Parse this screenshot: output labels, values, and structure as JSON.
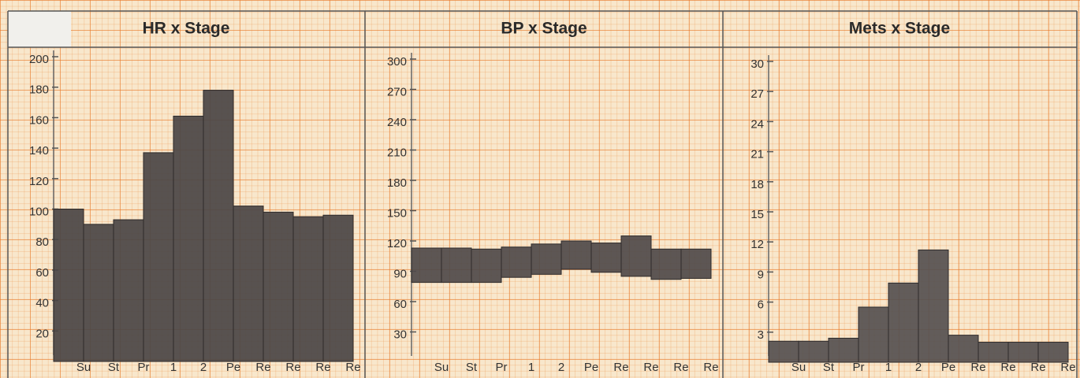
{
  "chart_data": [
    {
      "type": "bar",
      "title": "HR x Stage",
      "categories": [
        "Su",
        "St",
        "Pr",
        "1",
        "2",
        "Pe",
        "Re",
        "Re",
        "Re",
        "Re"
      ],
      "values": [
        100,
        90,
        93,
        137,
        161,
        178,
        102,
        98,
        95,
        96
      ],
      "color": "#4a4545",
      "ylim": [
        0,
        200
      ],
      "yticks": [
        20,
        40,
        60,
        80,
        100,
        120,
        140,
        160,
        180,
        200
      ]
    },
    {
      "type": "range-bar",
      "title": "BP x Stage",
      "categories": [
        "Su",
        "St",
        "Pr",
        "1",
        "2",
        "Pe",
        "Re",
        "Re",
        "Re",
        "Re"
      ],
      "high": [
        113,
        113,
        112,
        114,
        117,
        120,
        118,
        125,
        112,
        112
      ],
      "low": [
        79,
        79,
        79,
        84,
        87,
        92,
        89,
        85,
        82,
        83
      ],
      "color": "#4f4a4a",
      "ylim": [
        0,
        300
      ],
      "yticks": [
        30,
        60,
        90,
        120,
        150,
        180,
        210,
        240,
        270,
        300
      ]
    },
    {
      "type": "bar",
      "title": "Mets x Stage",
      "categories": [
        "Su",
        "St",
        "Pr",
        "1",
        "2",
        "Pe",
        "Re",
        "Re",
        "Re",
        "Re"
      ],
      "values": [
        2.1,
        2.1,
        2.4,
        5.5,
        7.9,
        11.2,
        2.7,
        2.0,
        2.0,
        2.0
      ],
      "color": "#555050",
      "ylim": [
        0,
        30
      ],
      "yticks": [
        3,
        6,
        9,
        12,
        15,
        18,
        21,
        24,
        27,
        30
      ]
    }
  ]
}
